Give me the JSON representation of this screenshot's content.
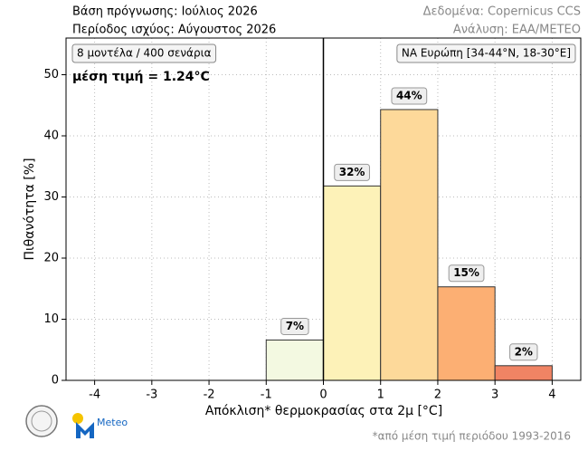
{
  "chart_data": {
    "type": "histogram",
    "header_left": [
      "Βάση πρόγνωσης: Ιούλιος 2026",
      "Περίοδος ισχύος: Αύγουστος 2026"
    ],
    "header_right": [
      "Δεδομένα: Copernicus CCS",
      "Ανάλυση: ΕΑΑ/METEO"
    ],
    "box_left": "8 μοντέλα / 400 σενάρια",
    "box_right": "ΝΑ Ευρώπη [34-44°N, 18-30°E]",
    "annotation": "μέση τιμή = 1.24°C",
    "xlabel": "Απόκλιση* θερμοκρασίας στα 2μ [°C]",
    "ylabel": "Πιθανότητα [%]",
    "footnote": "*από μέση τιμή περιόδου 1993-2016",
    "logo_text": "Meteo",
    "bins": [
      -1,
      0,
      1,
      2,
      3,
      4
    ],
    "values": [
      6.6,
      31.8,
      44.3,
      15.3,
      2.4
    ],
    "value_labels": [
      "7%",
      "32%",
      "44%",
      "15%",
      "2%"
    ],
    "colors": [
      "#f3f9e1",
      "#fdf2b8",
      "#fdd99a",
      "#fcaf73",
      "#f08464"
    ],
    "vline": 0,
    "xlim": [
      -4.5,
      4.5
    ],
    "ylim": [
      0,
      56
    ],
    "xticks": [
      -4,
      -3,
      -2,
      -1,
      0,
      1,
      2,
      3,
      4
    ],
    "yticks": [
      0,
      10,
      20,
      30,
      40,
      50
    ],
    "grid": true
  }
}
